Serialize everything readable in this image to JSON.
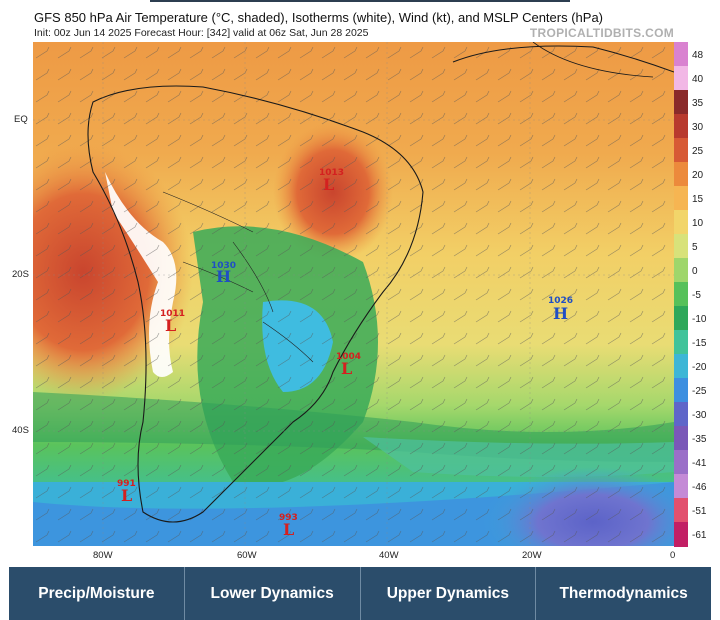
{
  "header": {
    "title": "GFS 850 hPa Air Temperature (°C, shaded), Isotherms (white), Wind (kt), and MSLP Centers (hPa)",
    "subtitle": "Init: 00z Jun 14 2025   Forecast Hour: [342]   valid at 06z Sat, Jun 28 2025",
    "site": "TROPICALTIDBITS.COM"
  },
  "map": {
    "lat_labels": [
      "EQ",
      "20S",
      "40S"
    ],
    "lon_labels": [
      "80W",
      "60W",
      "40W",
      "20W",
      "0"
    ],
    "pressure_centers": [
      {
        "type": "L",
        "value": "1013",
        "color": "#d42020"
      },
      {
        "type": "H",
        "value": "1030",
        "color": "#1f4fc4"
      },
      {
        "type": "L",
        "value": "1011",
        "color": "#d42020"
      },
      {
        "type": "H",
        "value": "1026",
        "color": "#1f4fc4"
      },
      {
        "type": "L",
        "value": "1004",
        "color": "#d42020"
      },
      {
        "type": "L",
        "value": "991",
        "color": "#d42020"
      },
      {
        "type": "L",
        "value": "993",
        "color": "#d42020"
      }
    ]
  },
  "colorbar": {
    "labels": [
      "48",
      "40",
      "35",
      "30",
      "25",
      "20",
      "15",
      "10",
      "5",
      "0",
      "-5",
      "-10",
      "-15",
      "-20",
      "-25",
      "-30",
      "-35",
      "-41",
      "-46",
      "-51",
      "-61"
    ],
    "colors": [
      "#d982d0",
      "#f2b8e6",
      "#8a2a2a",
      "#b83a2e",
      "#d75a35",
      "#ec8a3c",
      "#f6b552",
      "#f2d56a",
      "#d8e27a",
      "#9fd66b",
      "#56c15a",
      "#2ea85a",
      "#41c39a",
      "#3db6d6",
      "#3d8fe0",
      "#5f66c9",
      "#7a58b8",
      "#9a6fc8",
      "#c48ad6",
      "#e2506e",
      "#c21f64"
    ]
  },
  "nav": {
    "items": [
      "Precip/Moisture",
      "Lower Dynamics",
      "Upper Dynamics",
      "Thermodynamics"
    ]
  }
}
